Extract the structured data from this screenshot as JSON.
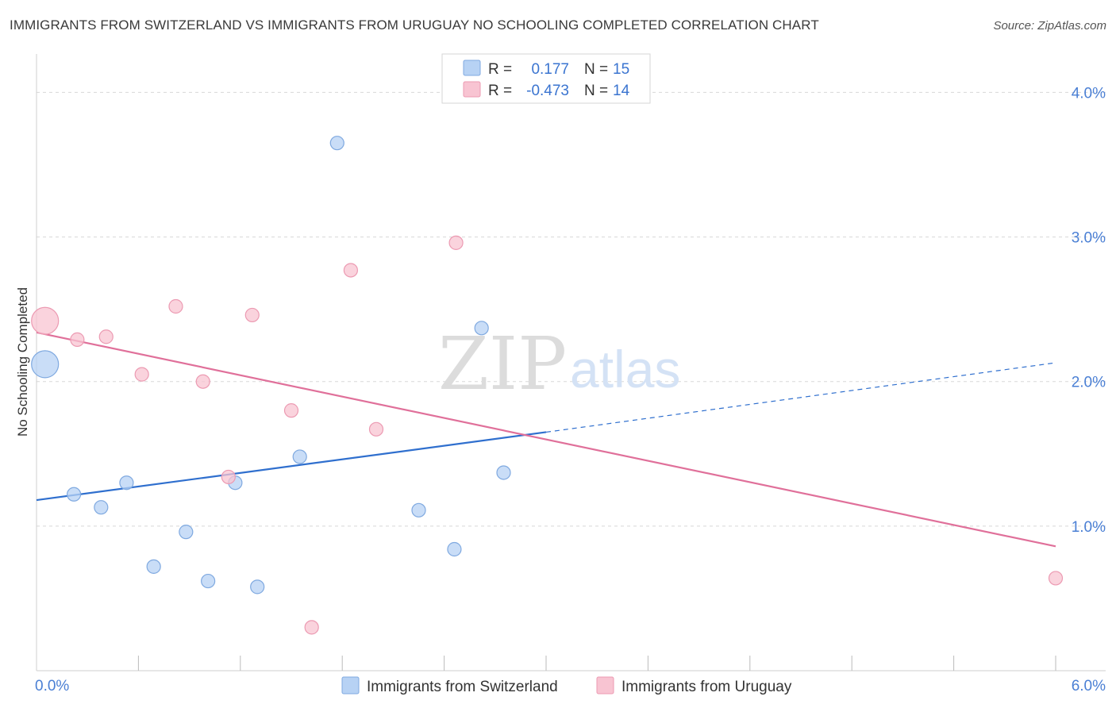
{
  "header": {
    "title": "IMMIGRANTS FROM SWITZERLAND VS IMMIGRANTS FROM URUGUAY NO SCHOOLING COMPLETED CORRELATION CHART",
    "source": "Source: ZipAtlas.com"
  },
  "watermark": {
    "zip": "ZIP",
    "atlas": "atlas"
  },
  "colors": {
    "switzerland_fill": "#b7d2f4",
    "switzerland_stroke": "#7fa9e0",
    "switzerland_line": "#2f6fce",
    "uruguay_fill": "#f8c4d2",
    "uruguay_stroke": "#ec9ab2",
    "uruguay_line": "#e0709a",
    "grid": "#d8d8d8",
    "tick_label": "#4a7fd4"
  },
  "legend_box": {
    "rows": [
      {
        "r_label": "R =",
        "r_value": "0.177",
        "n_label": "N =",
        "n_value": "15"
      },
      {
        "r_label": "R =",
        "r_value": "-0.473",
        "n_label": "N =",
        "n_value": "14"
      }
    ]
  },
  "chart_data": {
    "type": "scatter",
    "title": "IMMIGRANTS FROM SWITZERLAND VS IMMIGRANTS FROM URUGUAY NO SCHOOLING COMPLETED CORRELATION CHART",
    "xlabel": "",
    "ylabel": "No Schooling Completed",
    "xlim": [
      0,
      6
    ],
    "ylim": [
      0,
      4.2
    ],
    "x_tick_labels": [
      "0.0%",
      "6.0%"
    ],
    "y_ticks": [
      1,
      2,
      3,
      4
    ],
    "y_tick_labels": [
      "1.0%",
      "2.0%",
      "3.0%",
      "4.0%"
    ],
    "grid": true,
    "legend_position": "bottom",
    "series": [
      {
        "name": "Immigrants from Switzerland",
        "points": [
          {
            "x": 0.05,
            "y": 2.12,
            "size": "large"
          },
          {
            "x": 0.22,
            "y": 1.22
          },
          {
            "x": 0.38,
            "y": 1.13
          },
          {
            "x": 0.53,
            "y": 1.3
          },
          {
            "x": 0.69,
            "y": 0.72
          },
          {
            "x": 0.88,
            "y": 0.96
          },
          {
            "x": 1.01,
            "y": 0.62
          },
          {
            "x": 1.17,
            "y": 1.3
          },
          {
            "x": 1.3,
            "y": 0.58
          },
          {
            "x": 1.55,
            "y": 1.48
          },
          {
            "x": 1.77,
            "y": 3.65
          },
          {
            "x": 2.25,
            "y": 1.11
          },
          {
            "x": 2.46,
            "y": 0.84
          },
          {
            "x": 2.62,
            "y": 2.37
          },
          {
            "x": 2.75,
            "y": 1.37
          }
        ],
        "trend": {
          "x0": 0,
          "y0": 1.18,
          "x1": 3.0,
          "y1": 1.65,
          "dashed_to_x": 6,
          "dashed_to_y": 2.13
        }
      },
      {
        "name": "Immigrants from Uruguay",
        "points": [
          {
            "x": 0.05,
            "y": 2.42,
            "size": "large"
          },
          {
            "x": 0.24,
            "y": 2.29
          },
          {
            "x": 0.41,
            "y": 2.31
          },
          {
            "x": 0.62,
            "y": 2.05
          },
          {
            "x": 0.82,
            "y": 2.52
          },
          {
            "x": 0.98,
            "y": 2.0
          },
          {
            "x": 1.13,
            "y": 1.34
          },
          {
            "x": 1.27,
            "y": 2.46
          },
          {
            "x": 1.5,
            "y": 1.8
          },
          {
            "x": 1.62,
            "y": 0.3
          },
          {
            "x": 1.85,
            "y": 2.77
          },
          {
            "x": 2.0,
            "y": 1.67
          },
          {
            "x": 2.47,
            "y": 2.96
          },
          {
            "x": 6.0,
            "y": 0.64
          }
        ],
        "trend": {
          "x0": 0,
          "y0": 2.34,
          "x1": 6,
          "y1": 0.86
        }
      }
    ]
  }
}
